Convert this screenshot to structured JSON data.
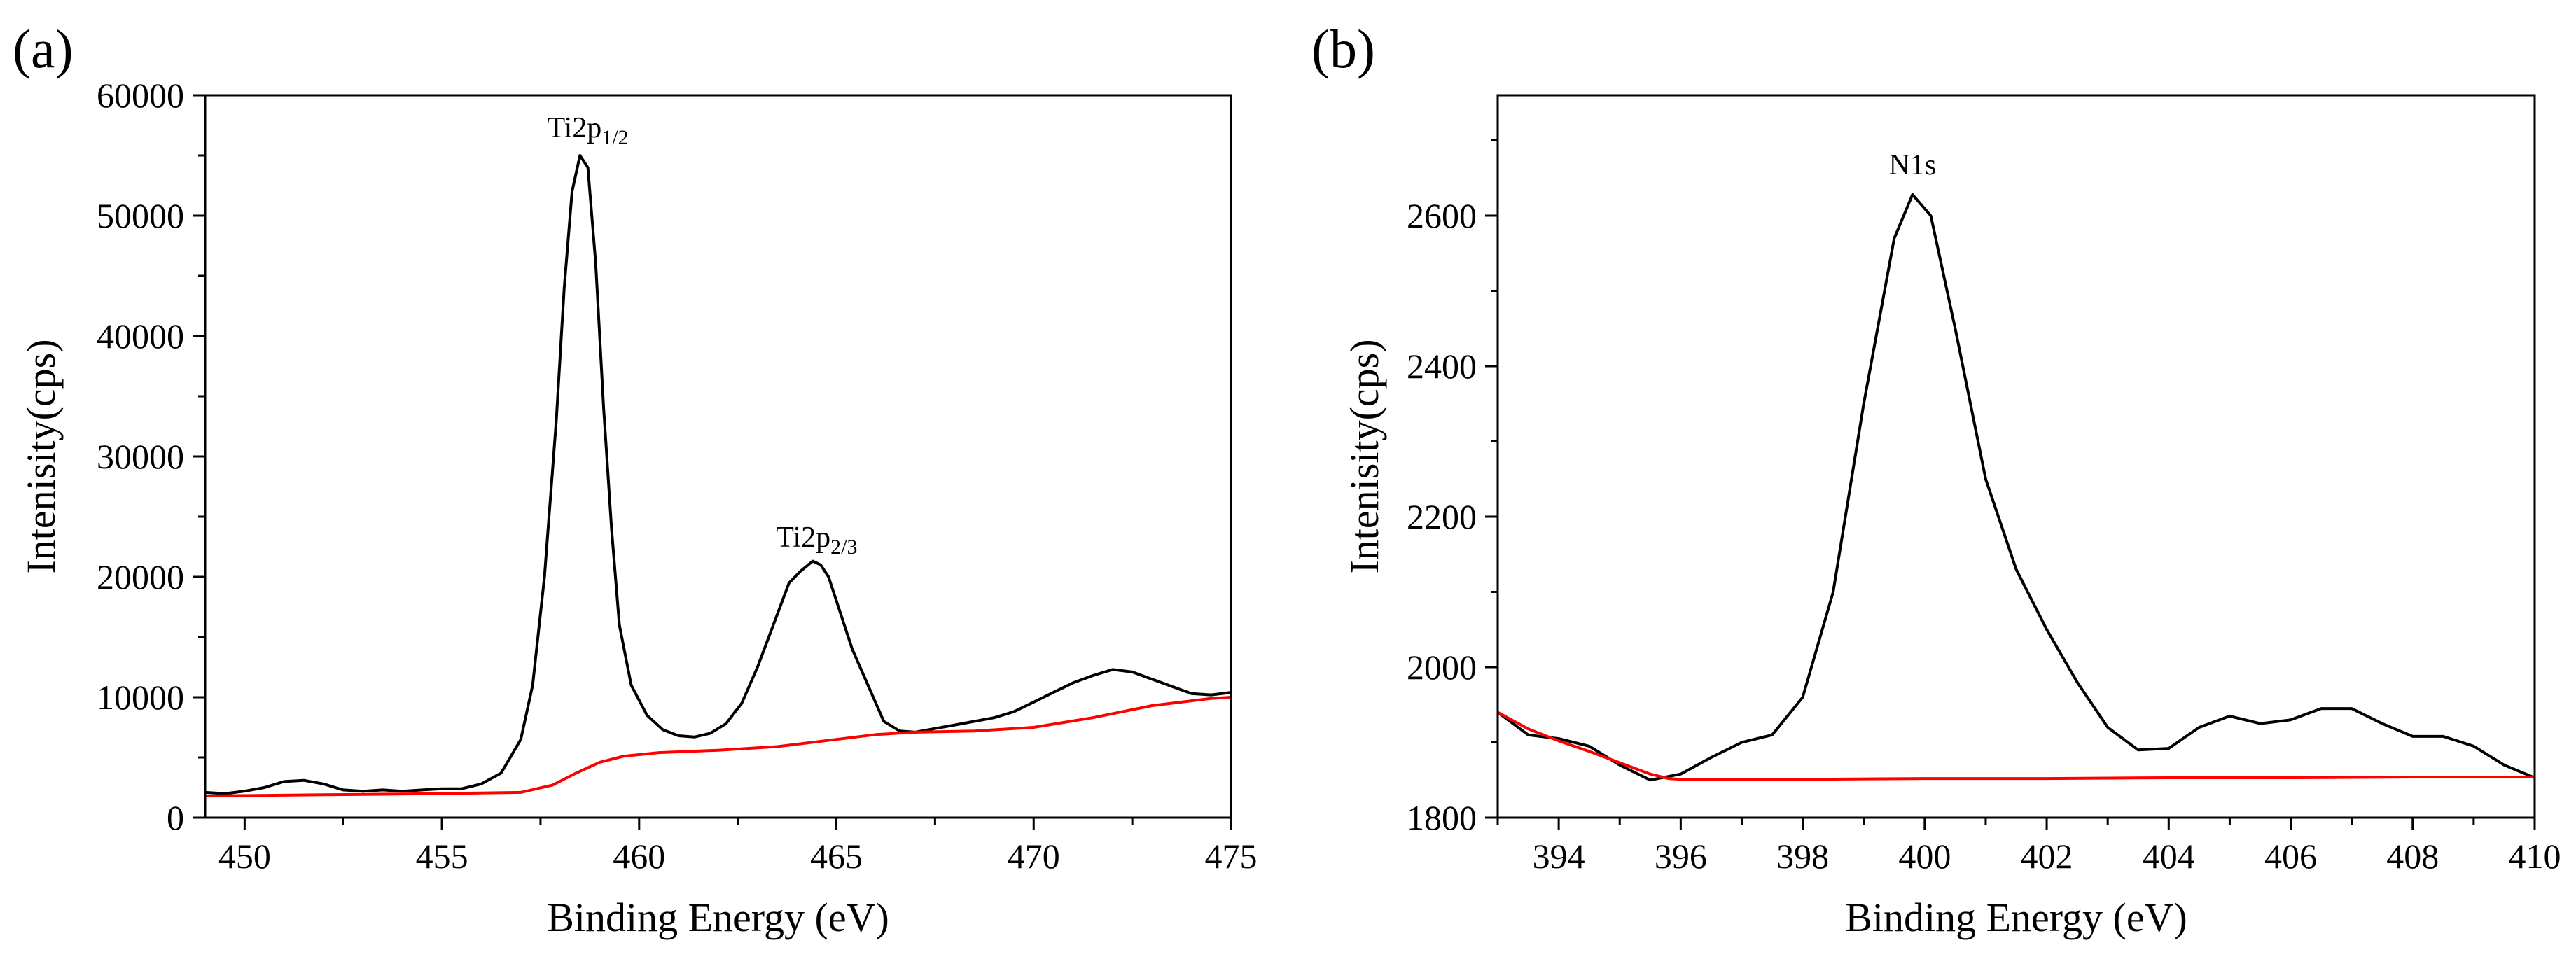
{
  "chart_data": [
    {
      "type": "line",
      "panel_label": "(a)",
      "title": "",
      "xlabel": "Binding Energy (eV)",
      "ylabel": "Intenisity(cps)",
      "xlim": [
        449,
        475
      ],
      "ylim": [
        0,
        60000
      ],
      "xticks": [
        450,
        455,
        460,
        465,
        470,
        475
      ],
      "yticks": [
        0,
        10000,
        20000,
        30000,
        40000,
        50000,
        60000
      ],
      "grid": false,
      "annotations": [
        {
          "id": "ti2p12",
          "base": "Ti2p",
          "sub": "1/2",
          "x": 458.7,
          "y": 56500
        },
        {
          "id": "ti2p23",
          "base": "Ti2p",
          "sub": "2/3",
          "x": 464.5,
          "y": 22500
        }
      ],
      "series": [
        {
          "name": "spectrum",
          "color": "#000000",
          "x": [
            449,
            449.5,
            450,
            450.5,
            451,
            451.5,
            452,
            452.5,
            453,
            453.5,
            454,
            454.5,
            455,
            455.5,
            456,
            456.5,
            457,
            457.3,
            457.6,
            457.9,
            458.1,
            458.3,
            458.5,
            458.7,
            458.9,
            459.1,
            459.3,
            459.5,
            459.8,
            460.2,
            460.6,
            461,
            461.4,
            461.8,
            462.2,
            462.6,
            463,
            463.4,
            463.8,
            464.1,
            464.4,
            464.6,
            464.8,
            465.1,
            465.4,
            465.8,
            466.2,
            466.6,
            467,
            467.5,
            468,
            468.5,
            469,
            469.5,
            470,
            470.5,
            471,
            471.5,
            472,
            472.5,
            473,
            473.5,
            474,
            474.5,
            475
          ],
          "y": [
            2100,
            2000,
            2200,
            2500,
            3000,
            3100,
            2800,
            2300,
            2200,
            2300,
            2200,
            2300,
            2400,
            2400,
            2800,
            3700,
            6500,
            11000,
            20000,
            33000,
            44000,
            52000,
            55000,
            54000,
            46000,
            34000,
            24000,
            16000,
            11000,
            8500,
            7300,
            6800,
            6700,
            7000,
            7800,
            9500,
            12500,
            16000,
            19500,
            20500,
            21300,
            21000,
            20000,
            17000,
            14000,
            11000,
            8000,
            7200,
            7100,
            7400,
            7700,
            8000,
            8300,
            8800,
            9600,
            10400,
            11200,
            11800,
            12300,
            12100,
            11500,
            10900,
            10300,
            10200,
            10400
          ]
        },
        {
          "name": "background",
          "color": "#ff0000",
          "x": [
            449,
            452,
            455,
            457,
            457.8,
            458.4,
            459,
            459.6,
            460.5,
            462,
            463.5,
            465,
            466,
            467,
            468.5,
            470,
            471.5,
            473,
            474.5,
            475
          ],
          "y": [
            1800,
            1900,
            2000,
            2100,
            2700,
            3700,
            4600,
            5100,
            5400,
            5600,
            5900,
            6500,
            6900,
            7100,
            7200,
            7500,
            8300,
            9300,
            9900,
            10000
          ]
        }
      ]
    },
    {
      "type": "line",
      "panel_label": "(b)",
      "title": "",
      "xlabel": "Binding Energy (eV)",
      "ylabel": "Intenisity(cps)",
      "xlim": [
        393,
        410
      ],
      "ylim": [
        1800,
        2760
      ],
      "xticks": [
        394,
        396,
        398,
        400,
        402,
        404,
        406,
        408,
        410
      ],
      "yticks": [
        1800,
        2000,
        2200,
        2400,
        2600
      ],
      "grid": false,
      "annotations": [
        {
          "id": "n1s",
          "base": "N1s",
          "sub": "",
          "x": 399.8,
          "y": 2655
        }
      ],
      "series": [
        {
          "name": "spectrum",
          "color": "#000000",
          "x": [
            393,
            393.5,
            394,
            394.5,
            395,
            395.5,
            396,
            396.5,
            397,
            397.5,
            398,
            398.5,
            399,
            399.5,
            399.8,
            400.1,
            400.5,
            401,
            401.5,
            402,
            402.5,
            403,
            403.5,
            404,
            404.5,
            405,
            405.5,
            406,
            406.5,
            407,
            407.5,
            408,
            408.5,
            409,
            409.5,
            410
          ],
          "y": [
            1940,
            1910,
            1905,
            1895,
            1870,
            1850,
            1858,
            1880,
            1900,
            1910,
            1960,
            2100,
            2350,
            2570,
            2628,
            2600,
            2450,
            2250,
            2130,
            2050,
            1980,
            1920,
            1890,
            1892,
            1920,
            1935,
            1925,
            1930,
            1945,
            1945,
            1925,
            1908,
            1908,
            1895,
            1870,
            1853
          ]
        },
        {
          "name": "background",
          "color": "#ff0000",
          "x": [
            393,
            393.5,
            394,
            394.5,
            395,
            395.5,
            395.8,
            396,
            398,
            400,
            402,
            404,
            406,
            408,
            410
          ],
          "y": [
            1940,
            1918,
            1902,
            1888,
            1873,
            1858,
            1852,
            1851,
            1851,
            1852,
            1852,
            1853,
            1853,
            1854,
            1854
          ]
        }
      ]
    }
  ]
}
